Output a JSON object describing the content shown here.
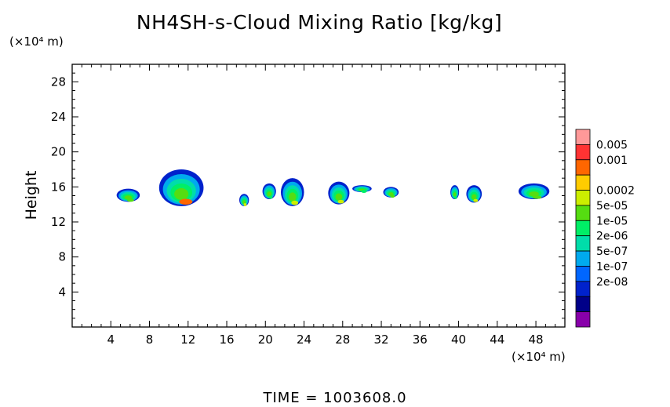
{
  "chart_data": {
    "type": "heatmap",
    "title": "NH4SH-s-Cloud Mixing Ratio [kg/kg]",
    "ylabel": "Height",
    "y_unit": "(×10⁴ m)",
    "x_unit": "(×10⁴ m)",
    "xlim": [
      0,
      51
    ],
    "ylim": [
      0,
      30
    ],
    "x_ticks": [
      4,
      8,
      12,
      16,
      20,
      24,
      28,
      32,
      36,
      40,
      44,
      48
    ],
    "y_ticks": [
      4,
      8,
      12,
      16,
      20,
      24,
      28
    ],
    "colorbar": {
      "labels": [
        "0.005",
        "0.001",
        "0.0002",
        "5e-05",
        "1e-05",
        "2e-06",
        "5e-07",
        "1e-07",
        "2e-08"
      ],
      "colors": [
        "#ff9999",
        "#ff3333",
        "#ff6600",
        "#ffcc00",
        "#ccee00",
        "#55dd11",
        "#00ee66",
        "#00ddaa",
        "#00aaee",
        "#0066ff",
        "#0022cc",
        "#000088",
        "#8800aa"
      ]
    },
    "clouds": [
      {
        "x_center": 5.8,
        "y_bottom": 14.3,
        "y_top": 15.8,
        "width": 2.4,
        "peak_color": "#55dd11"
      },
      {
        "x_center": 11.3,
        "y_bottom": 13.8,
        "y_top": 18.0,
        "width": 4.6,
        "peak_color": "#ff6600"
      },
      {
        "x_center": 17.8,
        "y_bottom": 13.8,
        "y_top": 15.2,
        "width": 1.0,
        "peak_color": "#ccee00"
      },
      {
        "x_center": 20.4,
        "y_bottom": 14.6,
        "y_top": 16.4,
        "width": 1.4,
        "peak_color": "#00ee66"
      },
      {
        "x_center": 22.8,
        "y_bottom": 13.8,
        "y_top": 17.0,
        "width": 2.4,
        "peak_color": "#ccee00"
      },
      {
        "x_center": 27.6,
        "y_bottom": 14.0,
        "y_top": 16.6,
        "width": 2.2,
        "peak_color": "#ccee00"
      },
      {
        "x_center": 30.0,
        "y_bottom": 15.4,
        "y_top": 16.2,
        "width": 2.0,
        "peak_color": "#00ee66"
      },
      {
        "x_center": 33.0,
        "y_bottom": 14.8,
        "y_top": 16.0,
        "width": 1.6,
        "peak_color": "#55dd11"
      },
      {
        "x_center": 39.6,
        "y_bottom": 14.6,
        "y_top": 16.2,
        "width": 0.9,
        "peak_color": "#00ee66"
      },
      {
        "x_center": 41.6,
        "y_bottom": 14.2,
        "y_top": 16.2,
        "width": 1.6,
        "peak_color": "#ccee00"
      },
      {
        "x_center": 47.8,
        "y_bottom": 14.6,
        "y_top": 16.4,
        "width": 3.2,
        "peak_color": "#55dd11"
      }
    ]
  },
  "footer": {
    "time_text": "TIME  =  1003608.0"
  }
}
